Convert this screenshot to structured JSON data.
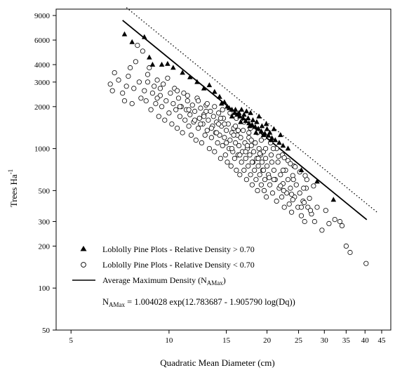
{
  "chart_data": {
    "type": "scatter",
    "x_scale": "log",
    "y_scale": "log",
    "xlim": [
      4.5,
      48
    ],
    "ylim": [
      50,
      10000
    ],
    "xlabel": "Quadratic Mean Diameter (cm)",
    "ylabel_main": "Trees Ha",
    "ylabel_sup": "-1",
    "x_ticks": [
      5,
      10,
      15,
      20,
      25,
      30,
      35,
      40,
      45
    ],
    "y_ticks": [
      50,
      100,
      200,
      300,
      500,
      1000,
      2000,
      3000,
      4000,
      6000,
      9000
    ],
    "grid": false,
    "legend": {
      "position": "bottom-left",
      "entries": [
        {
          "marker": "filled-triangle",
          "text": "Loblolly Pine Plots - Relative Density > 0.70"
        },
        {
          "marker": "open-circle",
          "text": "Loblolly Pine Plots - Relative Density < 0.70"
        },
        {
          "marker": "solid-line",
          "text_main": "Average Maximum Density (N",
          "text_sub": "AMax",
          "text_end": ")"
        }
      ]
    },
    "equation": {
      "lhs_main": "N",
      "lhs_sub": "AMax",
      "rhs": " = 1.004028 exp(12.783687 - 1.905790 log(Dq))"
    },
    "series": [
      {
        "name": "Loblolly Pine Plots - Relative Density > 0.70",
        "marker": "filled-triangle",
        "points": [
          [
            7.3,
            6600
          ],
          [
            7.7,
            5800
          ],
          [
            8.4,
            6300
          ],
          [
            8.7,
            4500
          ],
          [
            8.9,
            4000
          ],
          [
            9.5,
            4000
          ],
          [
            9.9,
            4050
          ],
          [
            10.3,
            3800
          ],
          [
            11,
            3500
          ],
          [
            11.6,
            3250
          ],
          [
            12.2,
            3000
          ],
          [
            12.8,
            2700
          ],
          [
            13.3,
            2850
          ],
          [
            13.8,
            2550
          ],
          [
            14.3,
            2350
          ],
          [
            14.8,
            2150
          ],
          [
            15.1,
            2000
          ],
          [
            15.3,
            1950
          ],
          [
            15.6,
            1900
          ],
          [
            15.9,
            1800
          ],
          [
            16.2,
            1750
          ],
          [
            16.5,
            1700
          ],
          [
            16.9,
            1650
          ],
          [
            17.2,
            1580
          ],
          [
            17.6,
            1520
          ],
          [
            18,
            1480
          ],
          [
            18.4,
            1430
          ],
          [
            18.8,
            1390
          ],
          [
            19.2,
            1330
          ],
          [
            19.7,
            1280
          ],
          [
            20.2,
            1240
          ],
          [
            20.7,
            1190
          ],
          [
            21.2,
            1150
          ],
          [
            21.8,
            1100
          ],
          [
            22.4,
            1050
          ],
          [
            23.2,
            1000
          ],
          [
            16,
            1900
          ],
          [
            16.4,
            1800
          ],
          [
            17,
            1750
          ],
          [
            17.5,
            1650
          ],
          [
            18.1,
            1600
          ],
          [
            18.6,
            1550
          ],
          [
            19.3,
            1450
          ],
          [
            20,
            1380
          ],
          [
            16.7,
            1900
          ],
          [
            17.8,
            1800
          ],
          [
            18.9,
            1700
          ],
          [
            19.9,
            1500
          ],
          [
            21,
            1380
          ],
          [
            22,
            1250
          ],
          [
            15.6,
            1700
          ],
          [
            16.6,
            1550
          ],
          [
            17.7,
            1450
          ],
          [
            18.5,
            1300
          ],
          [
            19.5,
            1250
          ],
          [
            20.6,
            1150
          ],
          [
            25.5,
            700
          ],
          [
            28.5,
            580
          ],
          [
            32,
            430
          ],
          [
            14.5,
            2100
          ],
          [
            17.3,
            1850
          ],
          [
            20.4,
            1300
          ]
        ]
      },
      {
        "name": "Loblolly Pine Plots - Relative Density < 0.70",
        "marker": "open-circle",
        "points": [
          [
            6.6,
            2900
          ],
          [
            6.7,
            2600
          ],
          [
            6.8,
            3500
          ],
          [
            7.0,
            3100
          ],
          [
            7.2,
            2500
          ],
          [
            7.3,
            2200
          ],
          [
            7.4,
            2800
          ],
          [
            7.5,
            3300
          ],
          [
            7.6,
            3800
          ],
          [
            7.7,
            2100
          ],
          [
            7.8,
            2700
          ],
          [
            7.9,
            4200
          ],
          [
            8.0,
            5500
          ],
          [
            8.1,
            3000
          ],
          [
            8.2,
            2300
          ],
          [
            8.3,
            5000
          ],
          [
            8.4,
            2600
          ],
          [
            8.5,
            2200
          ],
          [
            8.6,
            3400
          ],
          [
            8.7,
            3800
          ],
          [
            8.8,
            1900
          ],
          [
            8.9,
            2500
          ],
          [
            9.0,
            2800
          ],
          [
            9.1,
            2100
          ],
          [
            9.2,
            3100
          ],
          [
            9.3,
            1700
          ],
          [
            9.4,
            2400
          ],
          [
            9.5,
            2000
          ],
          [
            9.6,
            2900
          ],
          [
            9.7,
            1600
          ],
          [
            9.8,
            2200
          ],
          [
            9.9,
            3200
          ],
          [
            10.0,
            1800
          ],
          [
            10.1,
            2500
          ],
          [
            10.2,
            1500
          ],
          [
            10.3,
            2100
          ],
          [
            10.4,
            2700
          ],
          [
            10.5,
            1900
          ],
          [
            10.6,
            1400
          ],
          [
            10.7,
            2300
          ],
          [
            10.8,
            1700
          ],
          [
            10.9,
            2000
          ],
          [
            11.0,
            1300
          ],
          [
            11.1,
            2500
          ],
          [
            11.2,
            1600
          ],
          [
            11.3,
            1900
          ],
          [
            11.4,
            2200
          ],
          [
            11.5,
            1450
          ],
          [
            11.6,
            1750
          ],
          [
            11.7,
            1250
          ],
          [
            11.8,
            2050
          ],
          [
            11.9,
            1550
          ],
          [
            12.0,
            1850
          ],
          [
            12.1,
            1150
          ],
          [
            12.2,
            2300
          ],
          [
            12.3,
            1400
          ],
          [
            12.4,
            1650
          ],
          [
            12.5,
            1950
          ],
          [
            12.6,
            1100
          ],
          [
            12.7,
            1500
          ],
          [
            12.8,
            1750
          ],
          [
            12.9,
            1250
          ],
          [
            13.0,
            2050
          ],
          [
            13.1,
            1350
          ],
          [
            13.2,
            1600
          ],
          [
            13.3,
            1000
          ],
          [
            13.4,
            1850
          ],
          [
            13.5,
            1200
          ],
          [
            13.6,
            1450
          ],
          [
            13.7,
            1700
          ],
          [
            13.8,
            950
          ],
          [
            13.9,
            1300
          ],
          [
            14.0,
            1550
          ],
          [
            14.1,
            1100
          ],
          [
            14.2,
            1800
          ],
          [
            14.3,
            1250
          ],
          [
            14.4,
            850
          ],
          [
            14.5,
            1450
          ],
          [
            14.6,
            1050
          ],
          [
            14.7,
            1650
          ],
          [
            14.8,
            1200
          ],
          [
            14.9,
            900
          ],
          [
            15.0,
            1350
          ],
          [
            15.1,
            800
          ],
          [
            15.2,
            1500
          ],
          [
            15.3,
            1000
          ],
          [
            15.4,
            1150
          ],
          [
            15.5,
            750
          ],
          [
            15.6,
            1300
          ],
          [
            15.7,
            950
          ],
          [
            15.8,
            1400
          ],
          [
            15.9,
            850
          ],
          [
            16.0,
            1100
          ],
          [
            16.1,
            700
          ],
          [
            16.2,
            1250
          ],
          [
            16.3,
            900
          ],
          [
            16.4,
            1050
          ],
          [
            16.5,
            650
          ],
          [
            16.6,
            1200
          ],
          [
            16.7,
            800
          ],
          [
            16.8,
            950
          ],
          [
            16.9,
            1350
          ],
          [
            17.0,
            700
          ],
          [
            17.1,
            1100
          ],
          [
            17.2,
            850
          ],
          [
            17.3,
            600
          ],
          [
            17.4,
            1000
          ],
          [
            17.5,
            750
          ],
          [
            17.6,
            1200
          ],
          [
            17.7,
            900
          ],
          [
            17.8,
            650
          ],
          [
            17.9,
            1050
          ],
          [
            18.0,
            550
          ],
          [
            18.1,
            800
          ],
          [
            18.2,
            950
          ],
          [
            18.3,
            700
          ],
          [
            18.4,
            1100
          ],
          [
            18.5,
            600
          ],
          [
            18.6,
            850
          ],
          [
            18.7,
            500
          ],
          [
            18.8,
            750
          ],
          [
            18.9,
            1000
          ],
          [
            19.0,
            650
          ],
          [
            19.1,
            900
          ],
          [
            19.2,
            550
          ],
          [
            19.3,
            800
          ],
          [
            19.4,
            700
          ],
          [
            19.5,
            950
          ],
          [
            19.6,
            500
          ],
          [
            19.7,
            600
          ],
          [
            19.8,
            850
          ],
          [
            19.9,
            450
          ],
          [
            20.0,
            750
          ],
          [
            20.2,
            650
          ],
          [
            20.4,
            550
          ],
          [
            20.6,
            900
          ],
          [
            20.8,
            480
          ],
          [
            21.0,
            700
          ],
          [
            21.2,
            600
          ],
          [
            21.4,
            420
          ],
          [
            21.6,
            800
          ],
          [
            21.8,
            520
          ],
          [
            22.0,
            650
          ],
          [
            22.2,
            450
          ],
          [
            22.4,
            560
          ],
          [
            22.6,
            380
          ],
          [
            22.8,
            700
          ],
          [
            23.0,
            480
          ],
          [
            23.2,
            600
          ],
          [
            23.4,
            400
          ],
          [
            23.6,
            520
          ],
          [
            23.8,
            350
          ],
          [
            24.0,
            640
          ],
          [
            24.3,
            450
          ],
          [
            24.6,
            550
          ],
          [
            24.9,
            380
          ],
          [
            25.2,
            480
          ],
          [
            25.5,
            330
          ],
          [
            25.8,
            420
          ],
          [
            26.1,
            300
          ],
          [
            26.4,
            520
          ],
          [
            26.7,
            380
          ],
          [
            27.0,
            440
          ],
          [
            27.4,
            340
          ],
          [
            28.0,
            300
          ],
          [
            28.5,
            380
          ],
          [
            29.5,
            260
          ],
          [
            30.3,
            360
          ],
          [
            31.0,
            290
          ],
          [
            32.3,
            310
          ],
          [
            33.5,
            300
          ],
          [
            34.0,
            280
          ],
          [
            35.0,
            200
          ],
          [
            36.0,
            180
          ],
          [
            40.3,
            150
          ],
          [
            8.6,
            3000
          ],
          [
            9.4,
            2700
          ],
          [
            10.6,
            2600
          ],
          [
            11.4,
            2400
          ],
          [
            12.3,
            2200
          ],
          [
            13.1,
            2100
          ],
          [
            13.8,
            2000
          ],
          [
            14.6,
            1900
          ],
          [
            15.4,
            1800
          ],
          [
            16.1,
            1650
          ],
          [
            17.0,
            1550
          ],
          [
            17.8,
            1400
          ],
          [
            18.7,
            1300
          ],
          [
            19.6,
            1200
          ],
          [
            20.5,
            1100
          ],
          [
            21.4,
            1000
          ],
          [
            22.3,
            900
          ],
          [
            23.2,
            820
          ],
          [
            24.2,
            750
          ],
          [
            25.2,
            680
          ],
          [
            26.5,
            600
          ],
          [
            27.8,
            540
          ],
          [
            12.0,
            1600
          ],
          [
            13.5,
            1400
          ],
          [
            15.0,
            1100
          ],
          [
            16.5,
            900
          ],
          [
            18.0,
            800
          ],
          [
            19.5,
            700
          ],
          [
            21.0,
            600
          ],
          [
            22.5,
            500
          ],
          [
            24.0,
            430
          ],
          [
            25.5,
            380
          ],
          [
            11.5,
            1900
          ],
          [
            12.8,
            1700
          ],
          [
            14.2,
            1500
          ],
          [
            15.8,
            1250
          ],
          [
            17.4,
            1050
          ],
          [
            19.0,
            920
          ],
          [
            20.7,
            800
          ],
          [
            22.4,
            700
          ],
          [
            24.1,
            600
          ],
          [
            25.9,
            520
          ],
          [
            14.8,
            1500
          ],
          [
            16.3,
            1350
          ],
          [
            17.9,
            1150
          ],
          [
            19.8,
            1000
          ],
          [
            21.7,
            880
          ],
          [
            23.6,
            780
          ],
          [
            9.2,
            2300
          ],
          [
            10.8,
            2000
          ],
          [
            12.5,
            1500
          ],
          [
            14.0,
            1300
          ],
          [
            15.6,
            1000
          ],
          [
            17.2,
            950
          ],
          [
            18.8,
            850
          ],
          [
            20.3,
            620
          ],
          [
            22.0,
            540
          ],
          [
            23.8,
            470
          ],
          [
            26.0,
            410
          ],
          [
            27.2,
            360
          ],
          [
            13.0,
            1850
          ],
          [
            14.4,
            1650
          ],
          [
            16.0,
            1450
          ],
          [
            17.6,
            1300
          ],
          [
            19.2,
            1150
          ],
          [
            20.9,
            1000
          ],
          [
            22.6,
            860
          ],
          [
            24.4,
            740
          ],
          [
            26.2,
            640
          ]
        ]
      }
    ],
    "reference_lines": [
      {
        "name": "Average Maximum Density (NAMax)",
        "style": "solid",
        "x_range": [
          7.2,
          40.5
        ]
      },
      {
        "style": "dotted",
        "x_range": [
          7.4,
          43.5
        ]
      }
    ]
  }
}
